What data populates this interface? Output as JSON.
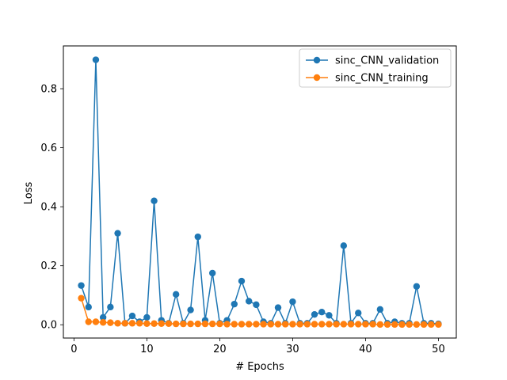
{
  "chart_data": {
    "type": "line",
    "xlabel": "# Epochs",
    "ylabel": "Loss",
    "xlim": [
      -1.45,
      52.45
    ],
    "ylim": [
      -0.045,
      0.945
    ],
    "xticks": [
      0,
      10,
      20,
      30,
      40,
      50
    ],
    "yticks": [
      0.0,
      0.2,
      0.4,
      0.6,
      0.8
    ],
    "ytick_labels": [
      "0.0",
      "0.2",
      "0.4",
      "0.6",
      "0.8"
    ],
    "legend_placement": "top-right",
    "grid": false,
    "x": [
      1,
      2,
      3,
      4,
      5,
      6,
      7,
      8,
      9,
      10,
      11,
      12,
      13,
      14,
      15,
      16,
      17,
      18,
      19,
      20,
      21,
      22,
      23,
      24,
      25,
      26,
      27,
      28,
      29,
      30,
      31,
      32,
      33,
      34,
      35,
      36,
      37,
      38,
      39,
      40,
      41,
      42,
      43,
      44,
      45,
      46,
      47,
      48,
      49,
      50
    ],
    "series": [
      {
        "name": "sinc_CNN_validation",
        "color": "#1f77b4",
        "values": [
          0.133,
          0.06,
          0.898,
          0.025,
          0.06,
          0.31,
          0.005,
          0.03,
          0.01,
          0.025,
          0.42,
          0.015,
          0.005,
          0.103,
          0.005,
          0.05,
          0.298,
          0.015,
          0.175,
          0.005,
          0.015,
          0.07,
          0.148,
          0.08,
          0.068,
          0.01,
          0.005,
          0.058,
          0.005,
          0.078,
          0.005,
          0.005,
          0.035,
          0.043,
          0.032,
          0.005,
          0.268,
          0.005,
          0.04,
          0.005,
          0.005,
          0.052,
          0.005,
          0.01,
          0.005,
          0.005,
          0.13,
          0.005,
          0.005,
          0.003
        ]
      },
      {
        "name": "sinc_CNN_training",
        "color": "#ff7f0e",
        "values": [
          0.09,
          0.01,
          0.01,
          0.008,
          0.007,
          0.005,
          0.005,
          0.005,
          0.005,
          0.004,
          0.004,
          0.004,
          0.004,
          0.003,
          0.003,
          0.003,
          0.003,
          0.003,
          0.003,
          0.003,
          0.002,
          0.002,
          0.002,
          0.002,
          0.002,
          0.002,
          0.002,
          0.002,
          0.002,
          0.002,
          0.002,
          0.002,
          0.002,
          0.002,
          0.002,
          0.002,
          0.002,
          0.002,
          0.002,
          0.002,
          0.002,
          0.001,
          0.001,
          0.001,
          0.001,
          0.001,
          0.001,
          0.001,
          0.001,
          0.001
        ]
      }
    ]
  }
}
